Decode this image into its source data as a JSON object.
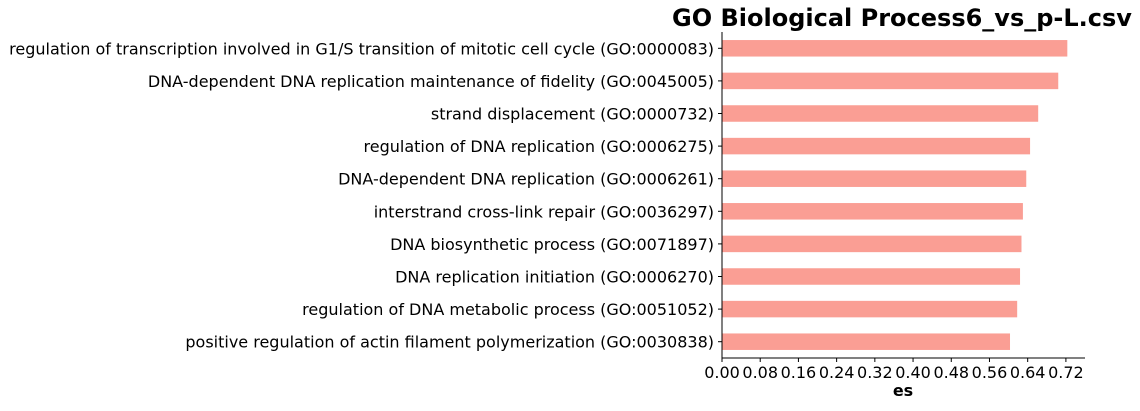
{
  "chart_data": {
    "type": "bar",
    "orientation": "horizontal",
    "title": "GO Biological Process6_vs_p-L.csv",
    "xlabel": "es",
    "ylabel": "",
    "xlim": [
      0,
      0.76
    ],
    "xticks": [
      "0.00",
      "0.08",
      "0.16",
      "0.24",
      "0.32",
      "0.40",
      "0.48",
      "0.56",
      "0.64",
      "0.72"
    ],
    "categories": [
      "regulation of transcription involved in G1/S transition of mitotic cell cycle (GO:0000083)",
      "DNA-dependent DNA replication maintenance of fidelity (GO:0045005)",
      "strand displacement (GO:0000732)",
      "regulation of DNA replication (GO:0006275)",
      "DNA-dependent DNA replication (GO:0006261)",
      "interstrand cross-link repair (GO:0036297)",
      "DNA biosynthetic process (GO:0071897)",
      "DNA replication initiation (GO:0006270)",
      "regulation of DNA metabolic process (GO:0051052)",
      "positive regulation of actin filament polymerization (GO:0030838)"
    ],
    "values": [
      0.723,
      0.704,
      0.662,
      0.645,
      0.637,
      0.63,
      0.627,
      0.624,
      0.618,
      0.603
    ],
    "bar_color": "#fa9e94",
    "grid": false
  }
}
